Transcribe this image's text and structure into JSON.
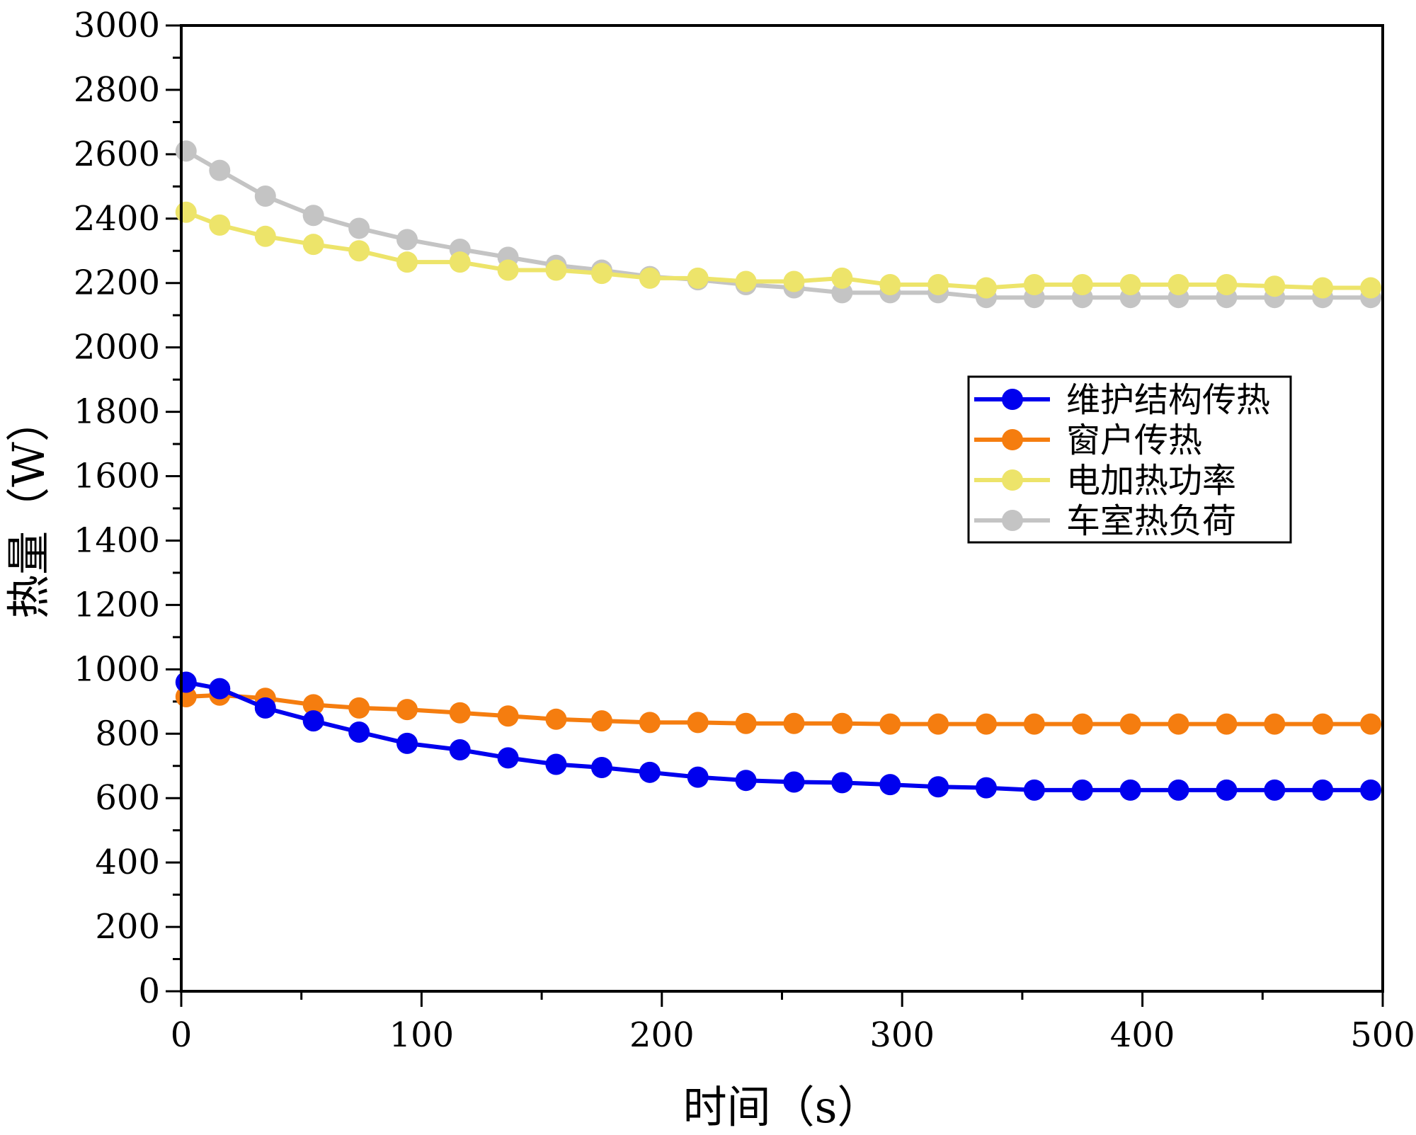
{
  "chart_data": {
    "type": "line",
    "title": "",
    "xlabel": "时间（s）",
    "ylabel": "热量（W）",
    "xlim": [
      0,
      500
    ],
    "ylim": [
      0,
      3000
    ],
    "xticks": [
      0,
      100,
      200,
      300,
      400,
      500
    ],
    "yticks": [
      0,
      200,
      400,
      600,
      800,
      1000,
      1200,
      1400,
      1600,
      1800,
      2000,
      2200,
      2400,
      2600,
      2800,
      3000
    ],
    "legend_position": "center-right",
    "x": [
      2,
      16,
      35,
      55,
      74,
      94,
      116,
      136,
      156,
      175,
      195,
      215,
      235,
      255,
      275,
      295,
      315,
      335,
      355,
      375,
      395,
      415,
      435,
      455,
      475,
      495
    ],
    "series": [
      {
        "name": "维护结构传热",
        "color": "#0000ee",
        "values": [
          960,
          940,
          880,
          840,
          805,
          770,
          750,
          725,
          705,
          695,
          680,
          665,
          655,
          650,
          648,
          642,
          635,
          632,
          625,
          625,
          625,
          625,
          625,
          625,
          625,
          625
        ]
      },
      {
        "name": "窗户传热",
        "color": "#f57d0f",
        "values": [
          915,
          920,
          910,
          890,
          880,
          875,
          865,
          855,
          845,
          840,
          835,
          835,
          832,
          832,
          832,
          830,
          830,
          830,
          830,
          830,
          830,
          830,
          830,
          830,
          830,
          830
        ]
      },
      {
        "name": "电加热功率",
        "color": "#ede46a",
        "values": [
          2420,
          2380,
          2345,
          2320,
          2300,
          2265,
          2265,
          2240,
          2240,
          2230,
          2215,
          2215,
          2205,
          2205,
          2215,
          2195,
          2195,
          2185,
          2195,
          2195,
          2195,
          2195,
          2195,
          2190,
          2185,
          2185
        ]
      },
      {
        "name": "车室热负荷",
        "color": "#c4c4c4",
        "values": [
          2610,
          2550,
          2470,
          2410,
          2370,
          2335,
          2305,
          2280,
          2255,
          2240,
          2220,
          2210,
          2195,
          2185,
          2170,
          2170,
          2170,
          2155,
          2155,
          2155,
          2155,
          2155,
          2155,
          2155,
          2155,
          2155
        ]
      }
    ]
  }
}
